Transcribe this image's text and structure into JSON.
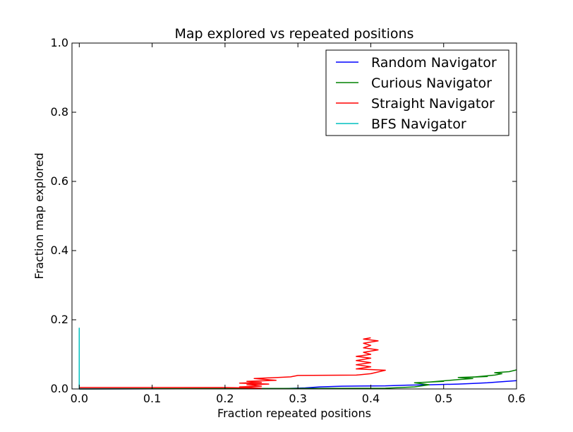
{
  "chart_data": {
    "type": "line",
    "title": "Map explored vs repeated positions",
    "xlabel": "Fraction repeated positions",
    "ylabel": "Fraction map explored",
    "xlim": [
      -0.01,
      0.6
    ],
    "ylim": [
      0.0,
      1.0
    ],
    "x_ticks": [
      "0.0",
      "0.1",
      "0.2",
      "0.3",
      "0.4",
      "0.5",
      "0.6"
    ],
    "y_ticks": [
      "0.0",
      "0.2",
      "0.4",
      "0.6",
      "0.8",
      "1.0"
    ],
    "grid": false,
    "legend_position": "top-right",
    "series": [
      {
        "name": "Random Navigator",
        "color": "#0000ff",
        "points": [
          [
            0.0,
            0.0
          ],
          [
            0.28,
            0.001
          ],
          [
            0.31,
            0.003
          ],
          [
            0.33,
            0.006
          ],
          [
            0.36,
            0.008
          ],
          [
            0.42,
            0.009
          ],
          [
            0.45,
            0.011
          ],
          [
            0.48,
            0.012
          ],
          [
            0.52,
            0.014
          ],
          [
            0.54,
            0.016
          ],
          [
            0.56,
            0.018
          ],
          [
            0.58,
            0.021
          ],
          [
            0.6,
            0.024
          ]
        ]
      },
      {
        "name": "Curious Navigator",
        "color": "#008000",
        "points": [
          [
            0.0,
            0.0
          ],
          [
            0.42,
            0.002
          ],
          [
            0.46,
            0.006
          ],
          [
            0.48,
            0.012
          ],
          [
            0.46,
            0.018
          ],
          [
            0.5,
            0.022
          ],
          [
            0.48,
            0.02
          ],
          [
            0.52,
            0.027
          ],
          [
            0.54,
            0.03
          ],
          [
            0.52,
            0.033
          ],
          [
            0.56,
            0.036
          ],
          [
            0.54,
            0.034
          ],
          [
            0.57,
            0.04
          ],
          [
            0.58,
            0.044
          ],
          [
            0.57,
            0.047
          ],
          [
            0.59,
            0.05
          ],
          [
            0.6,
            0.055
          ]
        ]
      },
      {
        "name": "Straight Navigator",
        "color": "#ff0000",
        "points": [
          [
            0.0,
            0.004
          ],
          [
            0.2,
            0.004
          ],
          [
            0.25,
            0.002
          ],
          [
            0.22,
            0.006
          ],
          [
            0.25,
            0.008
          ],
          [
            0.23,
            0.012
          ],
          [
            0.26,
            0.014
          ],
          [
            0.22,
            0.017
          ],
          [
            0.25,
            0.019
          ],
          [
            0.23,
            0.022
          ],
          [
            0.27,
            0.025
          ],
          [
            0.24,
            0.03
          ],
          [
            0.29,
            0.035
          ],
          [
            0.3,
            0.039
          ],
          [
            0.38,
            0.04
          ],
          [
            0.4,
            0.044
          ],
          [
            0.42,
            0.054
          ],
          [
            0.38,
            0.058
          ],
          [
            0.4,
            0.064
          ],
          [
            0.38,
            0.07
          ],
          [
            0.4,
            0.076
          ],
          [
            0.38,
            0.082
          ],
          [
            0.4,
            0.089
          ],
          [
            0.38,
            0.094
          ],
          [
            0.4,
            0.1
          ],
          [
            0.39,
            0.106
          ],
          [
            0.41,
            0.113
          ],
          [
            0.39,
            0.119
          ],
          [
            0.4,
            0.126
          ],
          [
            0.39,
            0.132
          ],
          [
            0.41,
            0.139
          ],
          [
            0.39,
            0.144
          ],
          [
            0.4,
            0.148
          ]
        ]
      },
      {
        "name": "BFS Navigator",
        "color": "#00bfbf",
        "points": [
          [
            0.0,
            0.0
          ],
          [
            0.0,
            0.177
          ]
        ]
      }
    ]
  }
}
